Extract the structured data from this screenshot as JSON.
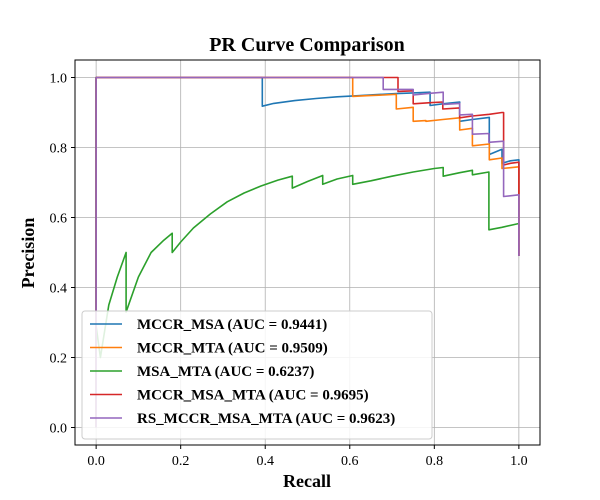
{
  "chart_data": {
    "type": "line",
    "title": "PR Curve Comparison",
    "xlabel": "Recall",
    "ylabel": "Precision",
    "xlim": [
      -0.05,
      1.05
    ],
    "ylim": [
      -0.05,
      1.05
    ],
    "xticks": [
      "0.0",
      "0.2",
      "0.4",
      "0.6",
      "0.8",
      "1.0"
    ],
    "yticks": [
      "0.0",
      "0.2",
      "0.4",
      "0.6",
      "0.8",
      "1.0"
    ],
    "grid": true,
    "legend_position": "lower-left",
    "series": [
      {
        "name": "MCCR_MSA (AUC = 0.9441)",
        "color": "#1f77b4",
        "x": [
          0.0,
          0.0,
          0.393,
          0.393,
          0.42,
          0.47,
          0.52,
          0.57,
          0.62,
          0.66,
          0.71,
          0.75,
          0.79,
          0.79,
          0.82,
          0.86,
          0.86,
          0.89,
          0.93,
          0.93,
          0.96,
          0.96,
          0.96,
          0.98,
          1.0,
          1.0
        ],
        "y": [
          0.0,
          1.0,
          1.0,
          0.918,
          0.926,
          0.934,
          0.94,
          0.945,
          0.948,
          0.951,
          0.954,
          0.956,
          0.958,
          0.92,
          0.925,
          0.93,
          0.875,
          0.88,
          0.886,
          0.78,
          0.795,
          0.795,
          0.755,
          0.762,
          0.765,
          0.49
        ]
      },
      {
        "name": "MCCR_MTA (AUC = 0.9509)",
        "color": "#ff7f0e",
        "x": [
          0.0,
          0.0,
          0.607,
          0.607,
          0.64,
          0.68,
          0.71,
          0.71,
          0.75,
          0.75,
          0.78,
          0.78,
          0.82,
          0.86,
          0.86,
          0.89,
          0.89,
          0.93,
          0.93,
          0.96,
          0.96,
          1.0,
          1.0
        ],
        "y": [
          0.0,
          1.0,
          1.0,
          0.946,
          0.948,
          0.95,
          0.952,
          0.91,
          0.915,
          0.875,
          0.877,
          0.875,
          0.88,
          0.885,
          0.85,
          0.855,
          0.805,
          0.81,
          0.765,
          0.77,
          0.74,
          0.745,
          0.49
        ]
      },
      {
        "name": "MSA_MTA (AUC = 0.6237)",
        "color": "#2ca02c",
        "x": [
          0.0,
          0.0,
          0.0,
          0.01,
          0.03,
          0.05,
          0.071,
          0.071,
          0.1,
          0.13,
          0.16,
          0.18,
          0.18,
          0.2,
          0.23,
          0.27,
          0.31,
          0.35,
          0.39,
          0.43,
          0.464,
          0.464,
          0.5,
          0.536,
          0.536,
          0.57,
          0.607,
          0.607,
          0.65,
          0.7,
          0.75,
          0.8,
          0.821,
          0.821,
          0.86,
          0.89,
          0.89,
          0.929,
          0.929,
          0.96,
          1.0
        ],
        "y": [
          0.0,
          1.0,
          0.29,
          0.2,
          0.35,
          0.43,
          0.5,
          0.33,
          0.43,
          0.5,
          0.535,
          0.555,
          0.5,
          0.53,
          0.57,
          0.61,
          0.645,
          0.67,
          0.69,
          0.707,
          0.718,
          0.684,
          0.703,
          0.72,
          0.695,
          0.71,
          0.72,
          0.695,
          0.705,
          0.718,
          0.73,
          0.74,
          0.743,
          0.718,
          0.728,
          0.735,
          0.722,
          0.73,
          0.565,
          0.572,
          0.583
        ]
      },
      {
        "name": "MCCR_MSA_MTA (AUC = 0.9695)",
        "color": "#d62728",
        "x": [
          0.0,
          0.0,
          0.714,
          0.714,
          0.75,
          0.75,
          0.79,
          0.82,
          0.82,
          0.86,
          0.86,
          0.89,
          0.93,
          0.96,
          0.964,
          0.964,
          0.98,
          1.0,
          1.0,
          1.0
        ],
        "y": [
          0.0,
          1.0,
          1.0,
          0.96,
          0.962,
          0.925,
          0.928,
          0.93,
          0.91,
          0.913,
          0.885,
          0.89,
          0.895,
          0.9,
          0.9,
          0.75,
          0.755,
          0.758,
          0.67,
          0.49
        ]
      },
      {
        "name": "RS_MCCR_MSA_MTA (AUC = 0.9623)",
        "color": "#9467bd",
        "x": [
          0.0,
          0.0,
          0.679,
          0.679,
          0.71,
          0.75,
          0.75,
          0.79,
          0.821,
          0.821,
          0.86,
          0.86,
          0.89,
          0.89,
          0.929,
          0.929,
          0.964,
          0.964,
          1.0,
          1.0
        ],
        "y": [
          0.0,
          1.0,
          1.0,
          0.966,
          0.966,
          0.966,
          0.95,
          0.955,
          0.958,
          0.923,
          0.926,
          0.893,
          0.895,
          0.838,
          0.84,
          0.815,
          0.818,
          0.66,
          0.665,
          0.49
        ]
      }
    ]
  }
}
